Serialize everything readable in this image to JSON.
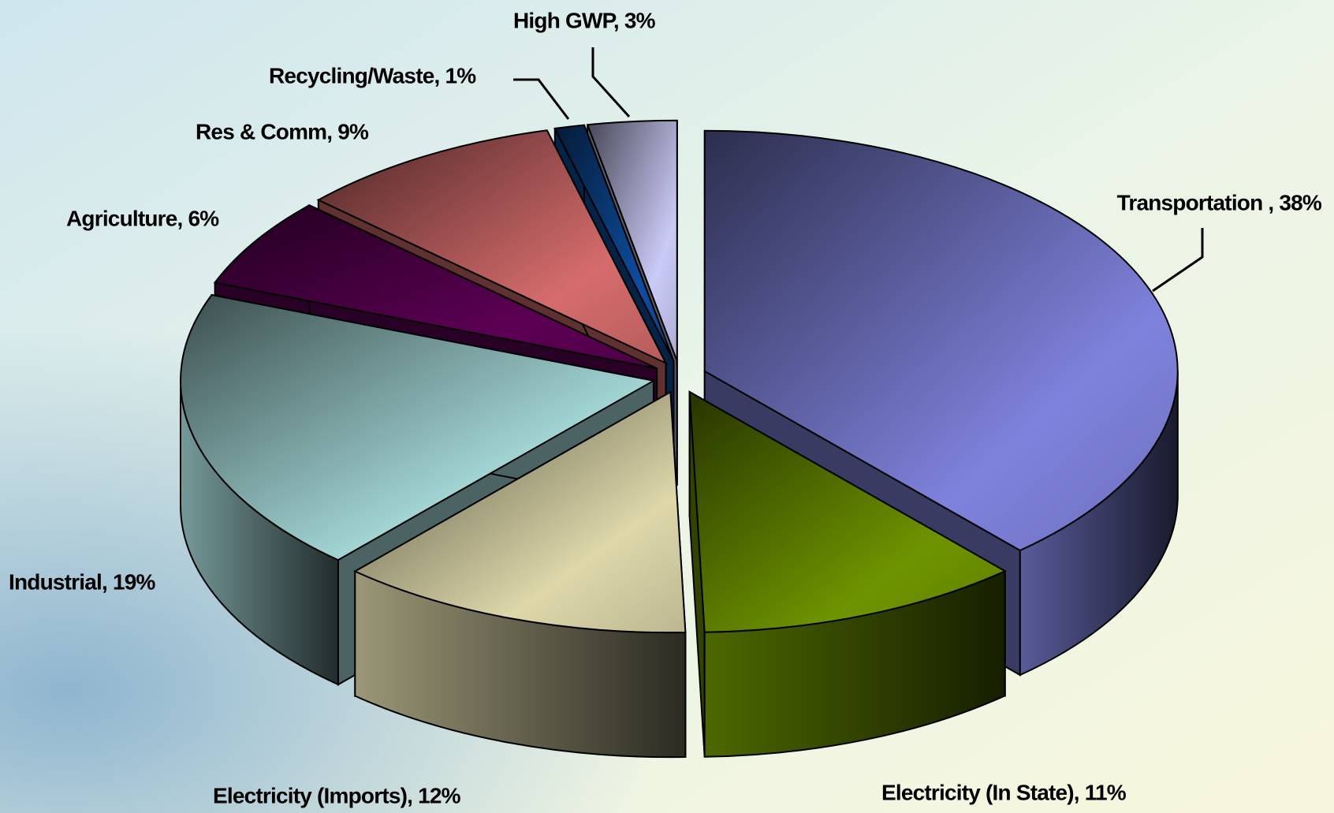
{
  "chart_data": {
    "type": "pie3d",
    "categories": [
      "Transportation , 38%",
      "Electricity (In State), 11%",
      "Electricity (Imports), 12%",
      "Industrial, 19%",
      "Agriculture, 6%",
      "Res & Comm, 9%",
      "Recycling/Waste, 1%",
      "High GWP, 3%"
    ],
    "values": [
      38,
      11,
      12,
      19,
      6,
      9,
      1,
      3
    ],
    "colors": [
      "#7f82dc",
      "#6e9400",
      "#ddd7aa",
      "#a8dcdc",
      "#5c0054",
      "#d66c6c",
      "#0e4c9e",
      "#cacaf7"
    ]
  }
}
